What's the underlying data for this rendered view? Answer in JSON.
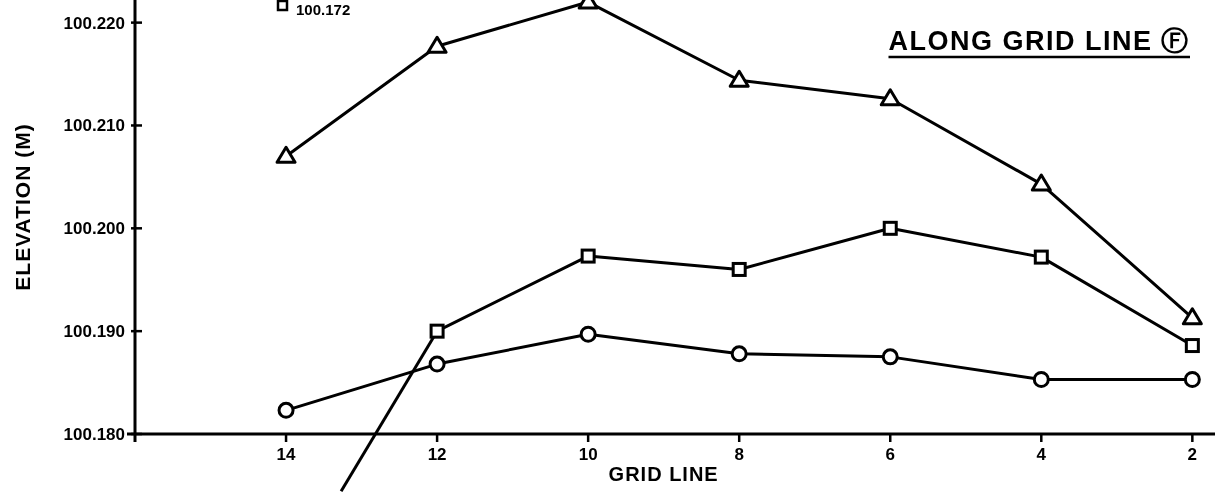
{
  "chart_data": {
    "type": "line",
    "title": "ALONG GRID LINE Ⓕ",
    "xlabel": "GRID LINE",
    "ylabel": "ELEVATION (M)",
    "x": [
      14,
      12,
      10,
      8,
      6,
      4,
      2
    ],
    "xlim": [
      16,
      1.7
    ],
    "xticks": [
      14,
      12,
      10,
      8,
      6,
      4,
      2
    ],
    "ylim": [
      100.18,
      100.2222
    ],
    "yticks": [
      {
        "value": 100.18,
        "label": "100.180"
      },
      {
        "value": 100.19,
        "label": "100.190"
      },
      {
        "value": 100.2,
        "label": "100.200"
      },
      {
        "value": 100.21,
        "label": "100.210"
      },
      {
        "value": 100.22,
        "label": "100.220"
      }
    ],
    "series": [
      {
        "color": "#000000",
        "marker": "triangle",
        "values": [
          100.207,
          100.2177,
          100.222,
          100.2144,
          100.2126,
          100.2043,
          100.1913
        ]
      },
      {
        "color": "#000000",
        "marker": "square",
        "values": [
          null,
          100.19,
          100.1973,
          100.196,
          100.2,
          100.1972,
          100.1886
        ]
      },
      {
        "color": "#000000",
        "marker": "circle",
        "values": [
          100.1823,
          100.1868,
          100.1897,
          100.1878,
          100.1875,
          100.1853,
          100.1853
        ]
      }
    ],
    "annotations": [
      "100.172"
    ],
    "grid": false
  }
}
